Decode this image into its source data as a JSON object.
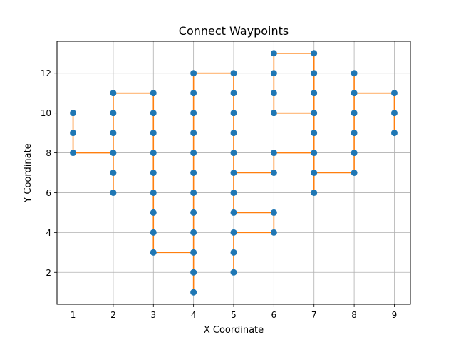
{
  "chart_data": {
    "type": "scatter",
    "title": "Connect Waypoints",
    "xlabel": "X Coordinate",
    "ylabel": "Y Coordinate",
    "xlim": [
      0.6,
      9.4
    ],
    "ylim": [
      0.4,
      13.6
    ],
    "xticks": [
      "1",
      "2",
      "3",
      "4",
      "5",
      "6",
      "7",
      "8",
      "9"
    ],
    "yticks": [
      "2",
      "4",
      "6",
      "8",
      "10",
      "12"
    ],
    "grid": true,
    "colors": {
      "points": "#1f77b4",
      "path": "#ff7f0e",
      "grid": "#b0b0b0"
    },
    "path": [
      [
        1,
        10
      ],
      [
        1,
        9
      ],
      [
        1,
        8
      ],
      [
        2,
        8
      ],
      [
        2,
        7
      ],
      [
        2,
        6
      ],
      [
        2,
        7
      ],
      [
        2,
        8
      ],
      [
        2,
        9
      ],
      [
        2,
        10
      ],
      [
        2,
        11
      ],
      [
        3,
        11
      ],
      [
        3,
        10
      ],
      [
        3,
        9
      ],
      [
        3,
        8
      ],
      [
        3,
        7
      ],
      [
        3,
        6
      ],
      [
        3,
        5
      ],
      [
        3,
        4
      ],
      [
        3,
        3
      ],
      [
        4,
        3
      ],
      [
        4,
        2
      ],
      [
        4,
        1
      ],
      [
        4,
        2
      ],
      [
        4,
        3
      ],
      [
        4,
        4
      ],
      [
        4,
        5
      ],
      [
        4,
        6
      ],
      [
        4,
        7
      ],
      [
        4,
        8
      ],
      [
        4,
        9
      ],
      [
        4,
        10
      ],
      [
        4,
        11
      ],
      [
        4,
        12
      ],
      [
        5,
        12
      ],
      [
        5,
        11
      ],
      [
        5,
        10
      ],
      [
        5,
        9
      ],
      [
        5,
        8
      ],
      [
        5,
        7
      ],
      [
        6,
        7
      ],
      [
        6,
        8
      ],
      [
        7,
        8
      ],
      [
        7,
        9
      ],
      [
        7,
        10
      ],
      [
        6,
        10
      ],
      [
        6,
        11
      ],
      [
        6,
        12
      ],
      [
        6,
        13
      ],
      [
        7,
        13
      ],
      [
        7,
        12
      ],
      [
        7,
        11
      ],
      [
        7,
        10
      ],
      [
        7,
        9
      ],
      [
        7,
        8
      ],
      [
        7,
        7
      ],
      [
        7,
        6
      ],
      [
        7,
        7
      ],
      [
        8,
        7
      ],
      [
        8,
        8
      ],
      [
        8,
        9
      ],
      [
        8,
        10
      ],
      [
        8,
        11
      ],
      [
        8,
        12
      ],
      [
        8,
        11
      ],
      [
        9,
        11
      ],
      [
        9,
        10
      ],
      [
        9,
        9
      ]
    ],
    "extra_segments": [
      [
        [
          5,
          7
        ],
        [
          5,
          6
        ],
        [
          5,
          5
        ],
        [
          6,
          5
        ],
        [
          6,
          4
        ],
        [
          5,
          4
        ],
        [
          5,
          3
        ],
        [
          5,
          2
        ]
      ]
    ],
    "points": [
      [
        1,
        10
      ],
      [
        1,
        9
      ],
      [
        1,
        8
      ],
      [
        2,
        11
      ],
      [
        2,
        10
      ],
      [
        2,
        9
      ],
      [
        2,
        8
      ],
      [
        2,
        7
      ],
      [
        2,
        6
      ],
      [
        3,
        11
      ],
      [
        3,
        10
      ],
      [
        3,
        9
      ],
      [
        3,
        8
      ],
      [
        3,
        7
      ],
      [
        3,
        6
      ],
      [
        3,
        5
      ],
      [
        3,
        4
      ],
      [
        3,
        3
      ],
      [
        4,
        12
      ],
      [
        4,
        11
      ],
      [
        4,
        10
      ],
      [
        4,
        9
      ],
      [
        4,
        8
      ],
      [
        4,
        7
      ],
      [
        4,
        6
      ],
      [
        4,
        5
      ],
      [
        4,
        4
      ],
      [
        4,
        3
      ],
      [
        4,
        2
      ],
      [
        4,
        1
      ],
      [
        5,
        12
      ],
      [
        5,
        11
      ],
      [
        5,
        10
      ],
      [
        5,
        9
      ],
      [
        5,
        8
      ],
      [
        5,
        7
      ],
      [
        5,
        6
      ],
      [
        5,
        5
      ],
      [
        5,
        4
      ],
      [
        5,
        3
      ],
      [
        5,
        2
      ],
      [
        6,
        13
      ],
      [
        6,
        12
      ],
      [
        6,
        11
      ],
      [
        6,
        10
      ],
      [
        6,
        8
      ],
      [
        6,
        7
      ],
      [
        6,
        5
      ],
      [
        6,
        4
      ],
      [
        7,
        13
      ],
      [
        7,
        12
      ],
      [
        7,
        11
      ],
      [
        7,
        10
      ],
      [
        7,
        9
      ],
      [
        7,
        8
      ],
      [
        7,
        7
      ],
      [
        7,
        6
      ],
      [
        8,
        12
      ],
      [
        8,
        11
      ],
      [
        8,
        10
      ],
      [
        8,
        9
      ],
      [
        8,
        8
      ],
      [
        8,
        7
      ],
      [
        9,
        11
      ],
      [
        9,
        10
      ],
      [
        9,
        9
      ]
    ]
  }
}
